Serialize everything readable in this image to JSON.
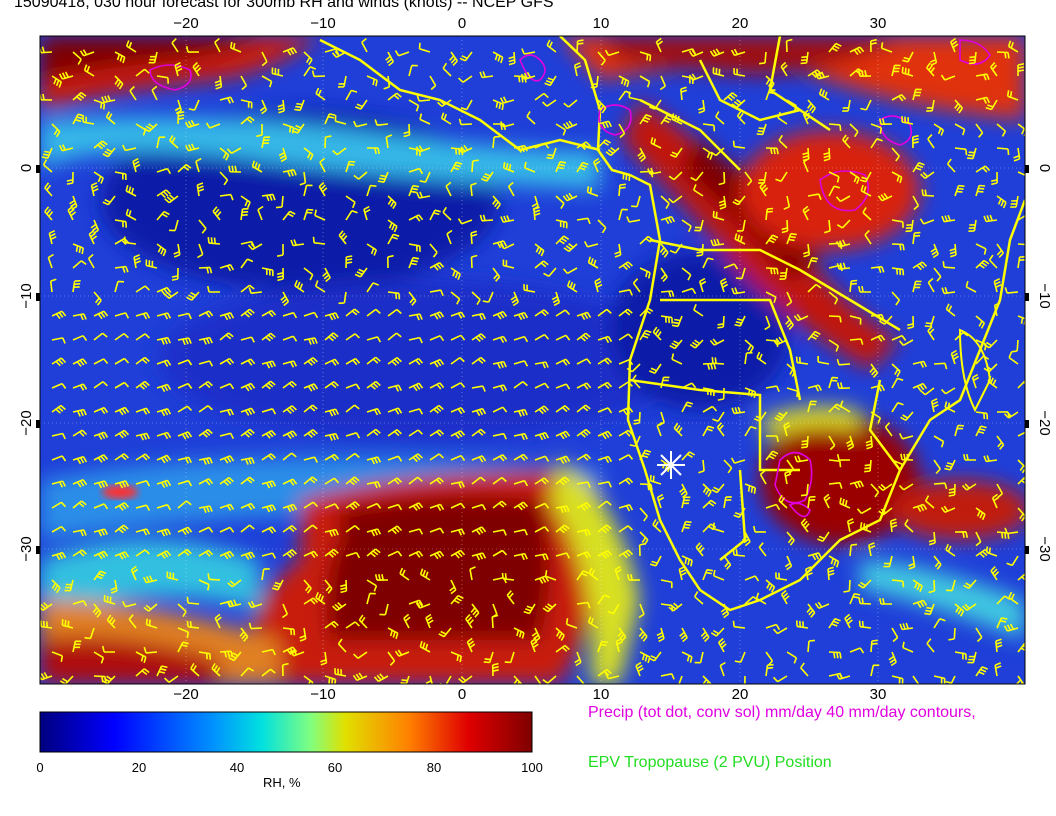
{
  "title": "15090418, 030 hour forecast for 300mb RH and winds (knots) -- NCEP GFS",
  "map": {
    "lon_ticks": [
      "−20",
      "−10",
      "0",
      "10",
      "20",
      "30"
    ],
    "lat_ticks": [
      "0",
      "−10",
      "−20",
      "−30"
    ],
    "marker": "white-star-marker"
  },
  "colorbar": {
    "label": "RH, %",
    "ticks": [
      "0",
      "20",
      "40",
      "60",
      "80",
      "100"
    ],
    "colors": [
      "#00007f",
      "#0000ff",
      "#0080ff",
      "#00e0e0",
      "#80ff80",
      "#e0e000",
      "#ff8000",
      "#e00000",
      "#7f0000"
    ]
  },
  "legend": {
    "precip": "Precip (tot dot, conv sol) mm/day 40 mm/day contours,",
    "epv": "EPV Tropopause (2 PVU) Position"
  },
  "colors": {
    "wind_barbs": "#ffff00",
    "coast": "#ffff00",
    "precip": "#e000e0",
    "epv": "#22dd22"
  }
}
